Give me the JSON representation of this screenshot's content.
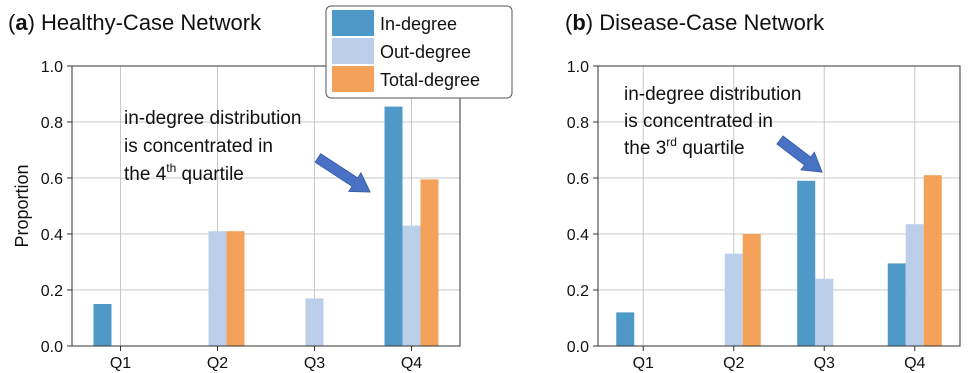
{
  "legend": {
    "entries": [
      {
        "label": "In-degree",
        "color": "#4f99c9"
      },
      {
        "label": "Out-degree",
        "color": "#bccfea"
      },
      {
        "label": "Total-degree",
        "color": "#f4a25a"
      }
    ],
    "placement": "top-center"
  },
  "chart_data": [
    {
      "type": "bar",
      "panel_letter": "a",
      "title": ") Healthy-Case Network",
      "ylabel": "Proportion",
      "xlabel": "",
      "categories": [
        "Q1",
        "Q2",
        "Q3",
        "Q4"
      ],
      "yticks": [
        "0.0",
        "0.2",
        "0.4",
        "0.6",
        "0.8",
        "1.0"
      ],
      "ylim": [
        0,
        1.0
      ],
      "grid": true,
      "series": [
        {
          "name": "In-degree",
          "values": [
            0.15,
            0,
            0,
            0.855
          ]
        },
        {
          "name": "Out-degree",
          "values": [
            0,
            0.41,
            0.17,
            0.43
          ]
        },
        {
          "name": "Total-degree",
          "values": [
            0,
            0.41,
            0,
            0.595
          ]
        }
      ],
      "annotation": {
        "lines": [
          "in-degree distribution",
          "is concentrated in"
        ],
        "last_line": {
          "before": "the 4",
          "sup": "th",
          "after": " quartile"
        }
      }
    },
    {
      "type": "bar",
      "panel_letter": "b",
      "title": ") Disease-Case Network",
      "ylabel": "",
      "xlabel": "",
      "categories": [
        "Q1",
        "Q2",
        "Q3",
        "Q4"
      ],
      "yticks": [
        "0.0",
        "0.2",
        "0.4",
        "0.6",
        "0.8",
        "1.0"
      ],
      "ylim": [
        0,
        1.0
      ],
      "grid": true,
      "series": [
        {
          "name": "In-degree",
          "values": [
            0.12,
            0,
            0.59,
            0.295
          ]
        },
        {
          "name": "Out-degree",
          "values": [
            0,
            0.33,
            0.24,
            0.435
          ]
        },
        {
          "name": "Total-degree",
          "values": [
            0,
            0.4,
            0,
            0.61
          ]
        }
      ],
      "annotation": {
        "lines": [
          "in-degree distribution",
          "is concentrated in"
        ],
        "last_line": {
          "before": "the 3",
          "sup": "rd",
          "after": " quartile"
        }
      }
    }
  ]
}
